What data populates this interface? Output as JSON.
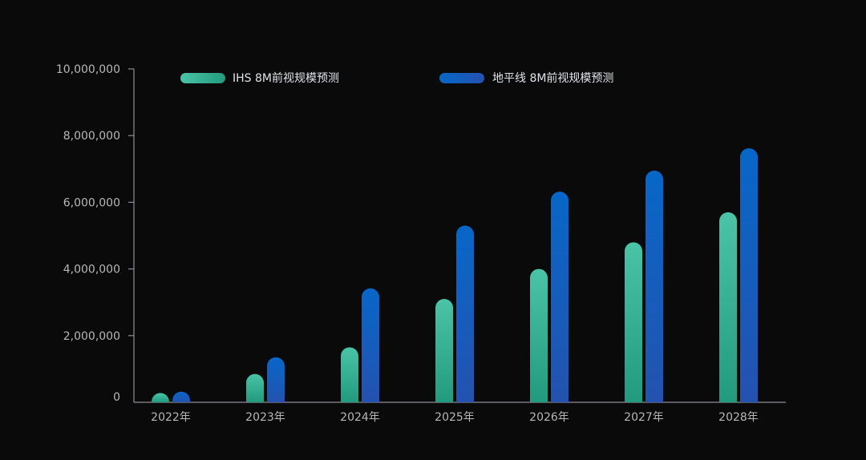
{
  "chart_data": {
    "type": "bar",
    "categories": [
      "2022年",
      "2023年",
      "2024年",
      "2025年",
      "2026年",
      "2027年",
      "2028年"
    ],
    "series": [
      {
        "name": "IHS 8M前视规模预测",
        "values": [
          280000,
          850000,
          1650000,
          3100000,
          4000000,
          4800000,
          5700000
        ],
        "color_top": "#4bc3a6",
        "color_bottom": "#229a7e"
      },
      {
        "name": "地平线 8M前视规模预测",
        "values": [
          320000,
          1350000,
          3420000,
          5300000,
          6320000,
          6950000,
          7620000
        ],
        "color_top": "#0767c8",
        "color_bottom": "#2452b0"
      }
    ],
    "ylim": [
      0,
      10000000
    ],
    "ytick_values": [
      0,
      2000000,
      4000000,
      6000000,
      8000000,
      10000000
    ],
    "ytick_labels": [
      "0",
      "2,000,000",
      "4,000,000",
      "6,000,000",
      "8,000,000",
      "10,000,000"
    ],
    "legend_position": "top",
    "grid": false,
    "background_color": "#0a0a0b",
    "axis_color": "#8d8f93",
    "tick_label_color": "#b7b7b7"
  }
}
